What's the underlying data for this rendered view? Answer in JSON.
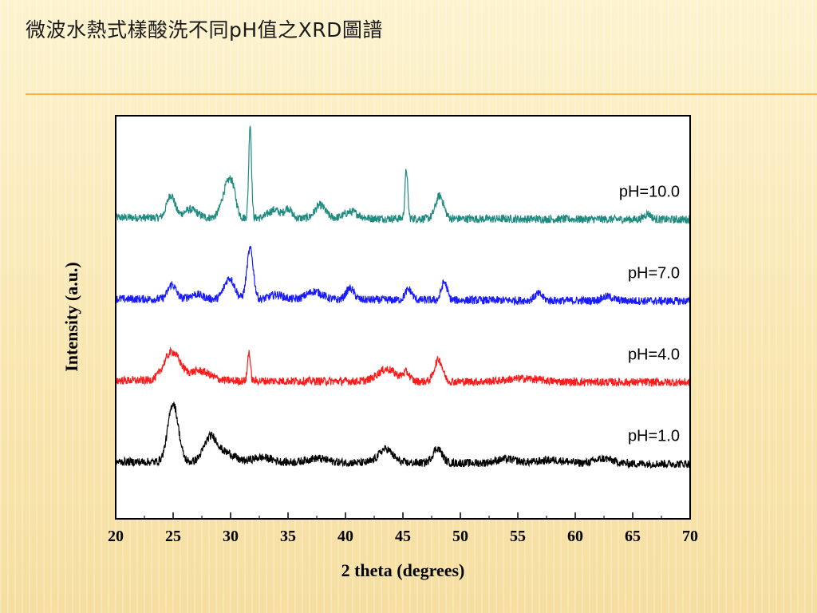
{
  "slide": {
    "title": "微波水熱式樣酸洗不同pH值之XRD圖譜"
  },
  "chart_data": {
    "type": "line",
    "title": "",
    "xlabel": "2 theta (degrees)",
    "ylabel": "Intensity (a.u.)",
    "xlim": [
      20,
      70
    ],
    "xticks": [
      20,
      25,
      30,
      35,
      40,
      45,
      50,
      55,
      60,
      65,
      70
    ],
    "yticks_shown": false,
    "grid": false,
    "legend": "inline labels at right of each trace",
    "series": [
      {
        "name": "pH=10.0",
        "color": "#1f8a80",
        "baseline": 4.95,
        "noise": 0.05,
        "peaks": [
          [
            24.8,
            0.28,
            0.35
          ],
          [
            26.5,
            0.1,
            0.6
          ],
          [
            29.7,
            0.38,
            0.45
          ],
          [
            30.2,
            0.22,
            0.3
          ],
          [
            31.7,
            1.15,
            0.12
          ],
          [
            33.8,
            0.1,
            0.5
          ],
          [
            35.0,
            0.12,
            0.3
          ],
          [
            37.8,
            0.16,
            0.45
          ],
          [
            40.5,
            0.08,
            0.6
          ],
          [
            45.3,
            0.6,
            0.12
          ],
          [
            48.2,
            0.28,
            0.35
          ],
          [
            66.3,
            0.07,
            0.3
          ]
        ]
      },
      {
        "name": "pH=7.0",
        "color": "#1a1aff",
        "baseline": 3.95,
        "noise": 0.05,
        "peaks": [
          [
            24.9,
            0.18,
            0.35
          ],
          [
            27.0,
            0.06,
            0.6
          ],
          [
            29.9,
            0.26,
            0.45
          ],
          [
            31.7,
            0.62,
            0.28
          ],
          [
            34.0,
            0.06,
            0.6
          ],
          [
            37.3,
            0.1,
            0.7
          ],
          [
            40.4,
            0.14,
            0.35
          ],
          [
            45.5,
            0.13,
            0.3
          ],
          [
            48.6,
            0.22,
            0.25
          ],
          [
            56.8,
            0.08,
            0.35
          ],
          [
            62.8,
            0.05,
            0.5
          ]
        ]
      },
      {
        "name": "pH=4.0",
        "color": "#ff1a1a",
        "baseline": 2.95,
        "noise": 0.05,
        "peaks": [
          [
            24.9,
            0.35,
            0.7
          ],
          [
            27.3,
            0.12,
            0.9
          ],
          [
            31.6,
            0.36,
            0.12
          ],
          [
            43.6,
            0.15,
            0.8
          ],
          [
            45.3,
            0.1,
            0.3
          ],
          [
            48.1,
            0.27,
            0.35
          ],
          [
            55.5,
            0.04,
            1.5
          ]
        ]
      },
      {
        "name": "pH=1.0",
        "color": "#000000",
        "baseline": 1.95,
        "noise": 0.05,
        "peaks": [
          [
            25.0,
            0.72,
            0.45
          ],
          [
            28.3,
            0.32,
            0.6
          ],
          [
            29.8,
            0.1,
            0.6
          ],
          [
            32.7,
            0.06,
            0.9
          ],
          [
            37.5,
            0.05,
            0.9
          ],
          [
            43.5,
            0.17,
            0.6
          ],
          [
            48.0,
            0.18,
            0.4
          ],
          [
            54.0,
            0.05,
            0.9
          ],
          [
            58.0,
            0.04,
            1.2
          ],
          [
            62.5,
            0.06,
            0.8
          ]
        ]
      }
    ],
    "ylim": [
      1.25,
      6.2
    ]
  }
}
